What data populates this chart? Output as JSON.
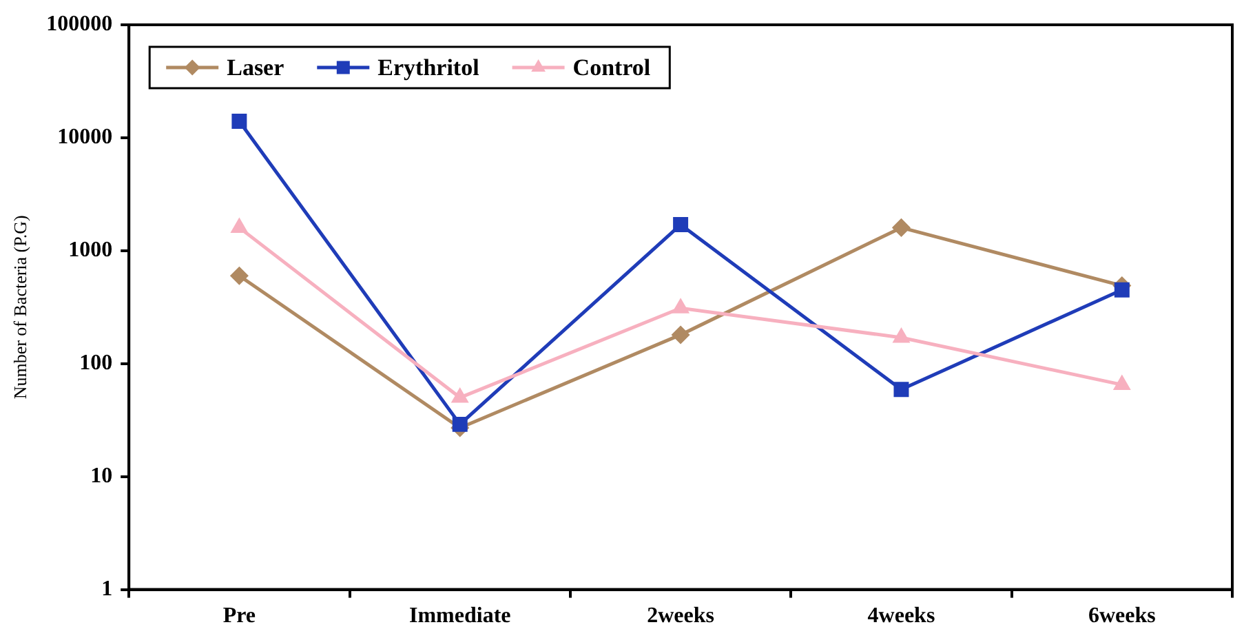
{
  "chart_data": {
    "type": "line",
    "ylabel": "Number of Bacteria (P.G)",
    "categories": [
      "Pre",
      "Immediate",
      "2weeks",
      "4weeks",
      "6weeks"
    ],
    "series": [
      {
        "name": "Laser",
        "color": "#b08a62",
        "marker": "diamond",
        "values": [
          600,
          27,
          180,
          1600,
          490
        ]
      },
      {
        "name": "Erythritol",
        "color": "#1f3cb8",
        "marker": "square",
        "values": [
          14000,
          29,
          1700,
          59,
          450
        ]
      },
      {
        "name": "Control",
        "color": "#f7b0bf",
        "marker": "triangle",
        "values": [
          1600,
          50,
          310,
          170,
          65
        ]
      }
    ],
    "log": "y",
    "ylim": [
      1,
      100000
    ],
    "yticks": [
      1,
      10,
      100,
      1000,
      10000,
      100000
    ],
    "legend": "top left",
    "line_style": "solid"
  }
}
